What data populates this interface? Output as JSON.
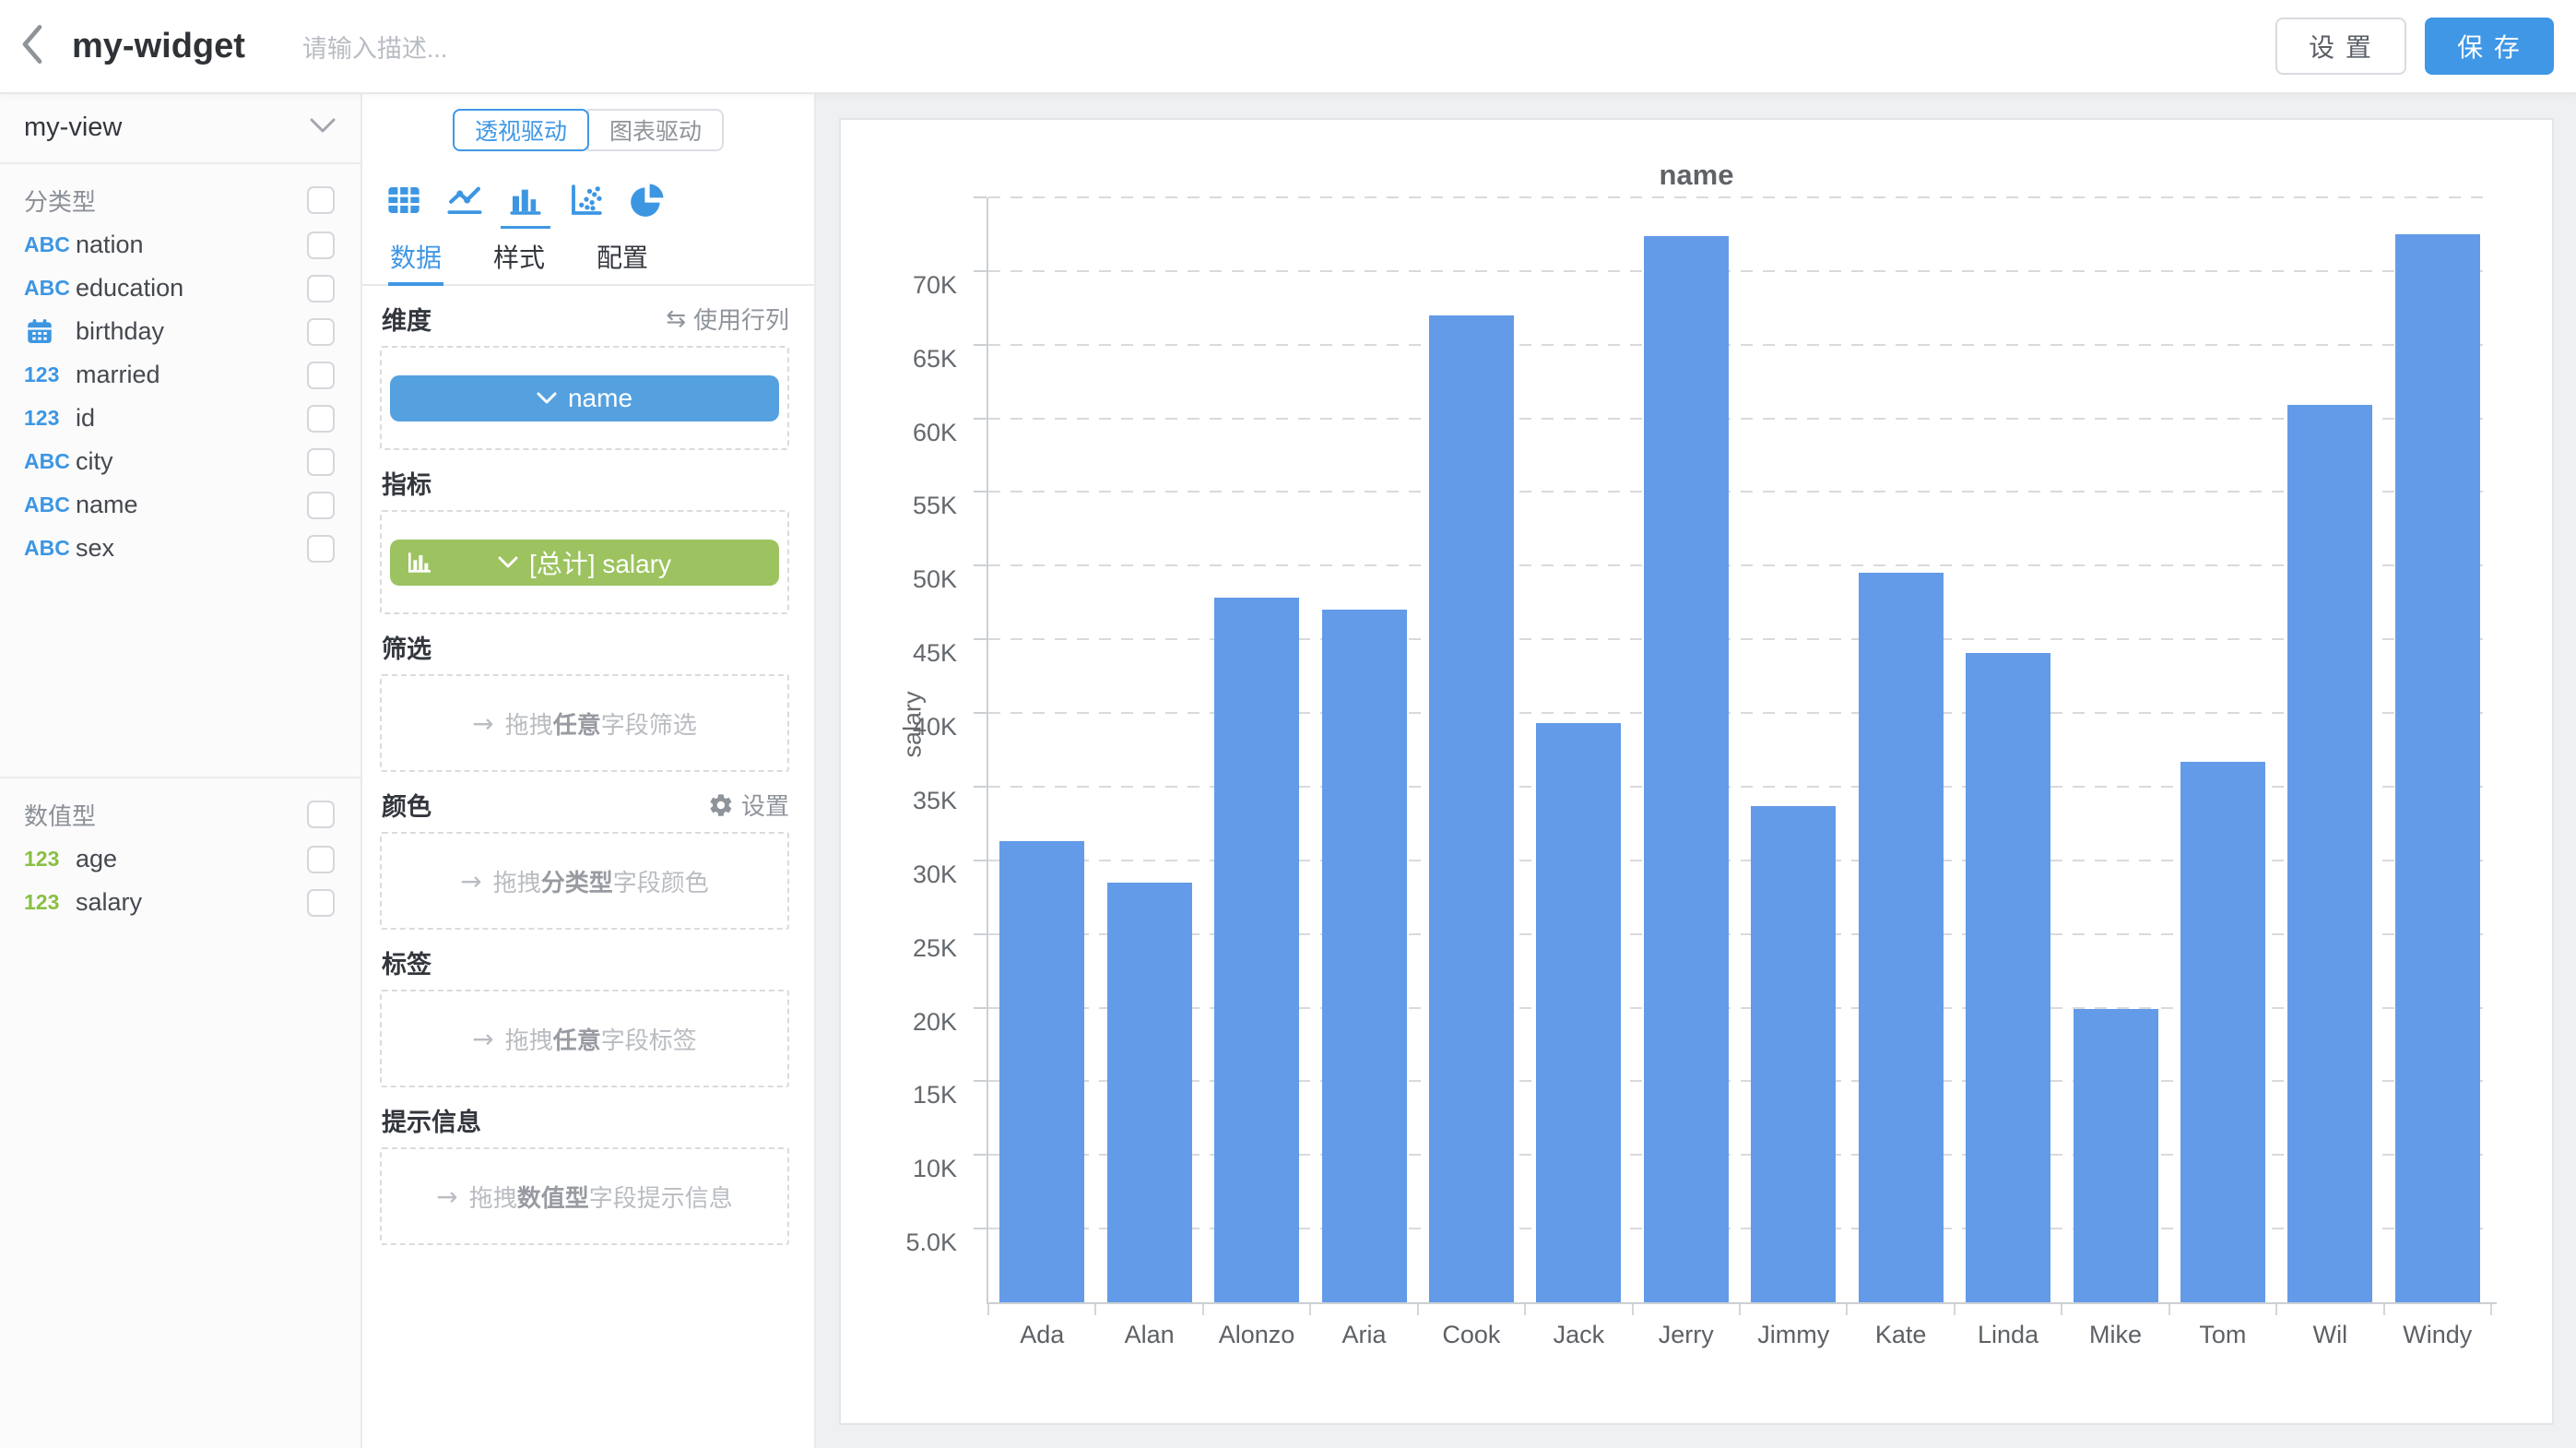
{
  "header": {
    "title": "my-widget",
    "description_placeholder": "请输入描述...",
    "settings_button": "设 置",
    "save_button": "保 存"
  },
  "sidebar": {
    "view_selector": {
      "value": "my-view"
    },
    "icon_text": {
      "abc": "ABC",
      "num": "123"
    },
    "sections": [
      {
        "label": "分类型",
        "fields": [
          {
            "icon": "abc",
            "label": "nation"
          },
          {
            "icon": "abc",
            "label": "education"
          },
          {
            "icon": "calendar",
            "label": "birthday"
          },
          {
            "icon": "num",
            "label": "married"
          },
          {
            "icon": "num",
            "label": "id"
          },
          {
            "icon": "abc",
            "label": "city"
          },
          {
            "icon": "abc",
            "label": "name"
          },
          {
            "icon": "abc",
            "label": "sex"
          }
        ]
      },
      {
        "label": "数值型",
        "fields": [
          {
            "icon": "num-green",
            "label": "age"
          },
          {
            "icon": "num-green",
            "label": "salary"
          }
        ]
      }
    ]
  },
  "panel": {
    "modes": [
      {
        "label": "透视驱动",
        "active": true
      },
      {
        "label": "图表驱动",
        "active": false
      }
    ],
    "chart_types": [
      {
        "icon": "table-icon",
        "active": false
      },
      {
        "icon": "line-chart-icon",
        "active": false
      },
      {
        "icon": "bar-chart-icon",
        "active": true
      },
      {
        "icon": "scatter-icon",
        "active": false
      },
      {
        "icon": "pie-icon",
        "active": false
      }
    ],
    "tabs": [
      {
        "label": "数据",
        "active": true
      },
      {
        "label": "样式",
        "active": false
      },
      {
        "label": "配置",
        "active": false
      }
    ],
    "dimension": {
      "label": "维度",
      "action": "使用行列",
      "swap_icon": "⇆",
      "pill_text": "name"
    },
    "metric": {
      "label": "指标",
      "pill_text": "[总计] salary"
    },
    "filter": {
      "label": "筛选",
      "hint": {
        "arrow": "→",
        "pre": "拖拽",
        "bold": "任意",
        "post": "字段筛选"
      }
    },
    "color": {
      "label": "颜色",
      "action": "设置",
      "hint": {
        "arrow": "→",
        "pre": "拖拽",
        "bold": "分类型",
        "post": "字段颜色"
      }
    },
    "tag": {
      "label": "标签",
      "hint": {
        "arrow": "→",
        "pre": "拖拽",
        "bold": "任意",
        "post": "字段标签"
      }
    },
    "tooltip": {
      "label": "提示信息",
      "hint": {
        "arrow": "→",
        "pre": "拖拽",
        "bold": "数值型",
        "post": "字段提示信息"
      }
    }
  },
  "chart_data": {
    "type": "bar",
    "title": "name",
    "xlabel": "",
    "ylabel": "salary",
    "categories": [
      "Ada",
      "Alan",
      "Alonzo",
      "Aria",
      "Cook",
      "Jack",
      "Jerry",
      "Jimmy",
      "Kate",
      "Linda",
      "Mike",
      "Tom",
      "Wil",
      "Windy"
    ],
    "values": [
      31300,
      28500,
      47800,
      47000,
      67000,
      39300,
      72400,
      33700,
      49500,
      44100,
      19900,
      36700,
      60900,
      72500
    ],
    "ylim": [
      0,
      75000
    ],
    "grid": "dashed-horizontal",
    "legend": "none",
    "bar_color": "#639BE8",
    "yticks": [
      {
        "value": 5000,
        "label": "5.0K"
      },
      {
        "value": 10000,
        "label": "10K"
      },
      {
        "value": 15000,
        "label": "15K"
      },
      {
        "value": 20000,
        "label": "20K"
      },
      {
        "value": 25000,
        "label": "25K"
      },
      {
        "value": 30000,
        "label": "30K"
      },
      {
        "value": 35000,
        "label": "35K"
      },
      {
        "value": 40000,
        "label": "40K"
      },
      {
        "value": 45000,
        "label": "45K"
      },
      {
        "value": 50000,
        "label": "50K"
      },
      {
        "value": 55000,
        "label": "55K"
      },
      {
        "value": 60000,
        "label": "60K"
      },
      {
        "value": 65000,
        "label": "65K"
      },
      {
        "value": 70000,
        "label": "70K"
      },
      {
        "value": 75000,
        "label": ""
      }
    ]
  },
  "colors": {
    "primary": "#3F97E5",
    "bar": "#639BE8",
    "dimension_pill": "#55A1E0",
    "metric_pill": "#9CC360",
    "abc_icon": "#3D96E2",
    "numeric_icon": "#8ABF44"
  }
}
